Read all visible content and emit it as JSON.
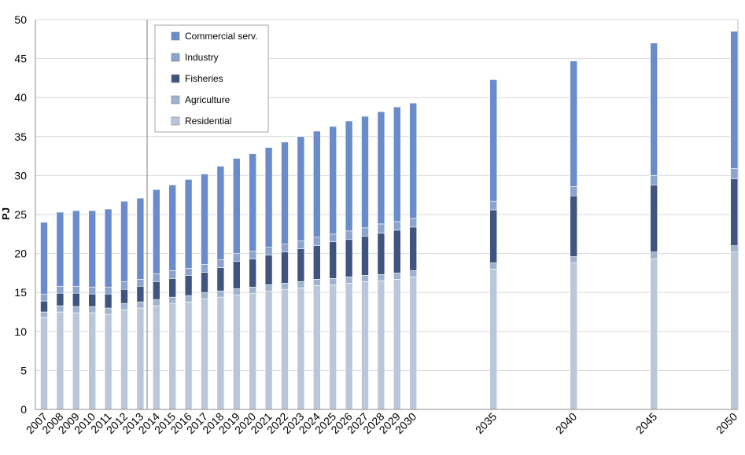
{
  "chart_data": {
    "type": "bar",
    "stacked": true,
    "ylabel": "PJ",
    "xlabel": "",
    "ylim": [
      0,
      50
    ],
    "yticks": [
      0,
      5,
      10,
      15,
      20,
      25,
      30,
      35,
      40,
      45,
      50
    ],
    "grid": "horizontal",
    "legend_position": "top-left",
    "categories": [
      "2007",
      "2008",
      "2009",
      "2010",
      "2011",
      "2012",
      "2013",
      "2014",
      "2015",
      "2016",
      "2017",
      "2018",
      "2019",
      "2020",
      "2021",
      "2022",
      "2023",
      "2024",
      "2025",
      "2026",
      "2027",
      "2028",
      "2029",
      "2030",
      "2035",
      "2040",
      "2045",
      "2050"
    ],
    "series": [
      {
        "name": "Residential",
        "color": "#bac7db",
        "values": [
          11.8,
          12.5,
          12.4,
          12.4,
          12.2,
          12.8,
          13.0,
          13.3,
          13.6,
          13.8,
          14.2,
          14.4,
          14.7,
          14.9,
          15.2,
          15.4,
          15.6,
          15.9,
          16.0,
          16.2,
          16.4,
          16.5,
          16.7,
          17.0,
          18.0,
          18.8,
          19.3,
          20.2
        ]
      },
      {
        "name": "Agriculture",
        "color": "#9fb3d1",
        "values": [
          0.7,
          0.8,
          0.8,
          0.8,
          0.8,
          0.8,
          0.8,
          0.8,
          0.8,
          0.8,
          0.8,
          0.8,
          0.8,
          0.8,
          0.8,
          0.8,
          0.8,
          0.8,
          0.8,
          0.8,
          0.8,
          0.8,
          0.8,
          0.8,
          0.8,
          0.8,
          0.9,
          0.8
        ]
      },
      {
        "name": "Fisheries",
        "color": "#3f557f",
        "values": [
          1.4,
          1.6,
          1.7,
          1.6,
          1.8,
          1.8,
          2.0,
          2.3,
          2.4,
          2.6,
          2.6,
          3.0,
          3.5,
          3.6,
          3.8,
          4.0,
          4.2,
          4.3,
          4.7,
          4.8,
          5.0,
          5.3,
          5.5,
          5.6,
          6.8,
          7.8,
          8.6,
          8.6
        ]
      },
      {
        "name": "Industry",
        "color": "#8aa4cf",
        "values": [
          0.9,
          0.9,
          0.9,
          0.9,
          0.9,
          1.0,
          0.9,
          1.0,
          1.0,
          0.9,
          1.0,
          1.0,
          1.0,
          1.0,
          1.0,
          1.0,
          1.0,
          1.1,
          1.0,
          1.1,
          1.1,
          1.2,
          1.1,
          1.1,
          1.1,
          1.2,
          1.2,
          1.3
        ]
      },
      {
        "name": "Commercial serv.",
        "color": "#6a8ccb",
        "values": [
          9.2,
          9.5,
          9.7,
          9.8,
          10.0,
          10.3,
          10.4,
          10.8,
          11.0,
          11.4,
          11.6,
          12.0,
          12.2,
          12.5,
          12.8,
          13.1,
          13.4,
          13.6,
          13.8,
          14.1,
          14.3,
          14.4,
          14.7,
          14.8,
          15.6,
          16.1,
          17.0,
          17.6
        ]
      }
    ],
    "legend_order": [
      "Commercial serv.",
      "Industry",
      "Fisheries",
      "Agriculture",
      "Residential"
    ]
  }
}
